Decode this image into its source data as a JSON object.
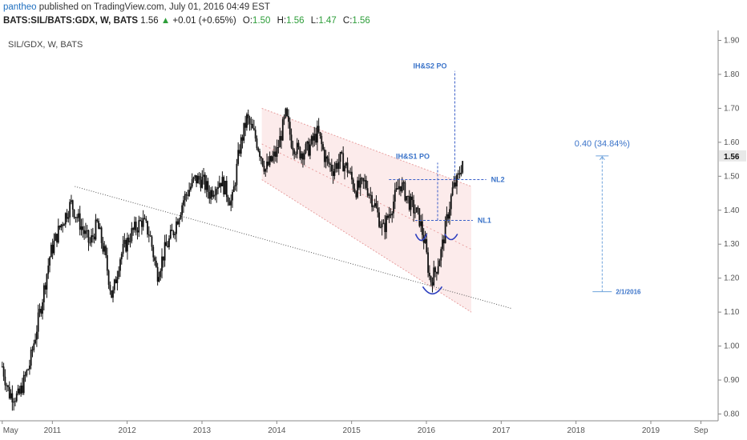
{
  "header": {
    "author": "pantheo",
    "published_text": "published on TradingView.com, July 01, 2016 04:49 EST",
    "symbol": "BATS:SIL/BATS:GDX, W, BATS",
    "last": "1.56",
    "change": "+0.01 (+0.65%)",
    "open_label": "O:",
    "open": "1.50",
    "high_label": "H:",
    "high": "1.56",
    "low_label": "L:",
    "low": "1.47",
    "close_label": "C:",
    "close": "1.56"
  },
  "colors": {
    "candles": "#111111",
    "channel_fill": "#fbe6e6",
    "channel_line": "#e8a0a0",
    "annotation": "#3a5fc9",
    "price_tag_bg": "#e8e8e8"
  },
  "chart_data": {
    "type": "candlestick",
    "title": "SIL/GDX, W, BATS",
    "ylim": [
      0.78,
      1.92
    ],
    "y_ticks": [
      0.8,
      0.9,
      1.0,
      1.1,
      1.2,
      1.3,
      1.4,
      1.5,
      1.6,
      1.7,
      1.8,
      1.9
    ],
    "x_tick_labels": [
      "May",
      "2011",
      "2012",
      "2013",
      "2014",
      "2015",
      "2016",
      "2017",
      "2018",
      "2019",
      "Sep"
    ],
    "x_ticks_years": [
      2010.33,
      2011.0,
      2012.0,
      2013.0,
      2014.0,
      2015.0,
      2016.0,
      2017.0,
      2018.0,
      2019.0,
      2019.67
    ],
    "xlim": [
      2010.3,
      2019.9
    ],
    "last_price": "1.56",
    "price_path": [
      [
        2010.33,
        0.94
      ],
      [
        2010.42,
        0.86
      ],
      [
        2010.55,
        0.85
      ],
      [
        2010.7,
        0.95
      ],
      [
        2010.85,
        1.12
      ],
      [
        2010.97,
        1.27
      ],
      [
        2011.1,
        1.35
      ],
      [
        2011.25,
        1.42
      ],
      [
        2011.35,
        1.37
      ],
      [
        2011.5,
        1.3
      ],
      [
        2011.6,
        1.36
      ],
      [
        2011.7,
        1.27
      ],
      [
        2011.8,
        1.14
      ],
      [
        2011.9,
        1.26
      ],
      [
        2012.05,
        1.33
      ],
      [
        2012.2,
        1.37
      ],
      [
        2012.3,
        1.33
      ],
      [
        2012.4,
        1.21
      ],
      [
        2012.5,
        1.28
      ],
      [
        2012.62,
        1.34
      ],
      [
        2012.75,
        1.43
      ],
      [
        2012.9,
        1.49
      ],
      [
        2013.0,
        1.49
      ],
      [
        2013.1,
        1.45
      ],
      [
        2013.25,
        1.49
      ],
      [
        2013.4,
        1.42
      ],
      [
        2013.5,
        1.58
      ],
      [
        2013.6,
        1.67
      ],
      [
        2013.72,
        1.61
      ],
      [
        2013.85,
        1.52
      ],
      [
        2014.0,
        1.57
      ],
      [
        2014.12,
        1.68
      ],
      [
        2014.2,
        1.6
      ],
      [
        2014.3,
        1.57
      ],
      [
        2014.42,
        1.58
      ],
      [
        2014.55,
        1.63
      ],
      [
        2014.65,
        1.55
      ],
      [
        2014.75,
        1.52
      ],
      [
        2014.85,
        1.55
      ],
      [
        2014.95,
        1.52
      ],
      [
        2015.05,
        1.46
      ],
      [
        2015.18,
        1.48
      ],
      [
        2015.3,
        1.42
      ],
      [
        2015.42,
        1.34
      ],
      [
        2015.55,
        1.42
      ],
      [
        2015.65,
        1.48
      ],
      [
        2015.78,
        1.42
      ],
      [
        2015.9,
        1.38
      ],
      [
        2015.98,
        1.3
      ],
      [
        2016.05,
        1.19
      ],
      [
        2016.12,
        1.22
      ],
      [
        2016.2,
        1.28
      ],
      [
        2016.28,
        1.38
      ],
      [
        2016.35,
        1.46
      ],
      [
        2016.42,
        1.49
      ],
      [
        2016.5,
        1.56
      ]
    ],
    "annotations": {
      "channel_label": "",
      "ihs1_label": "IH&S1 PO",
      "ihs2_label": "IH&S2 PO",
      "nl1_label": "NL1",
      "nl2_label": "NL2",
      "measure_label": "0.40 (34.84%)",
      "measure_date_label": "2/1/2016",
      "nl1_level": 1.37,
      "nl2_level": 1.49,
      "ihs1_target": 1.54,
      "ihs2_target": 1.81,
      "measure_low": 1.16,
      "measure_high": 1.56
    }
  }
}
